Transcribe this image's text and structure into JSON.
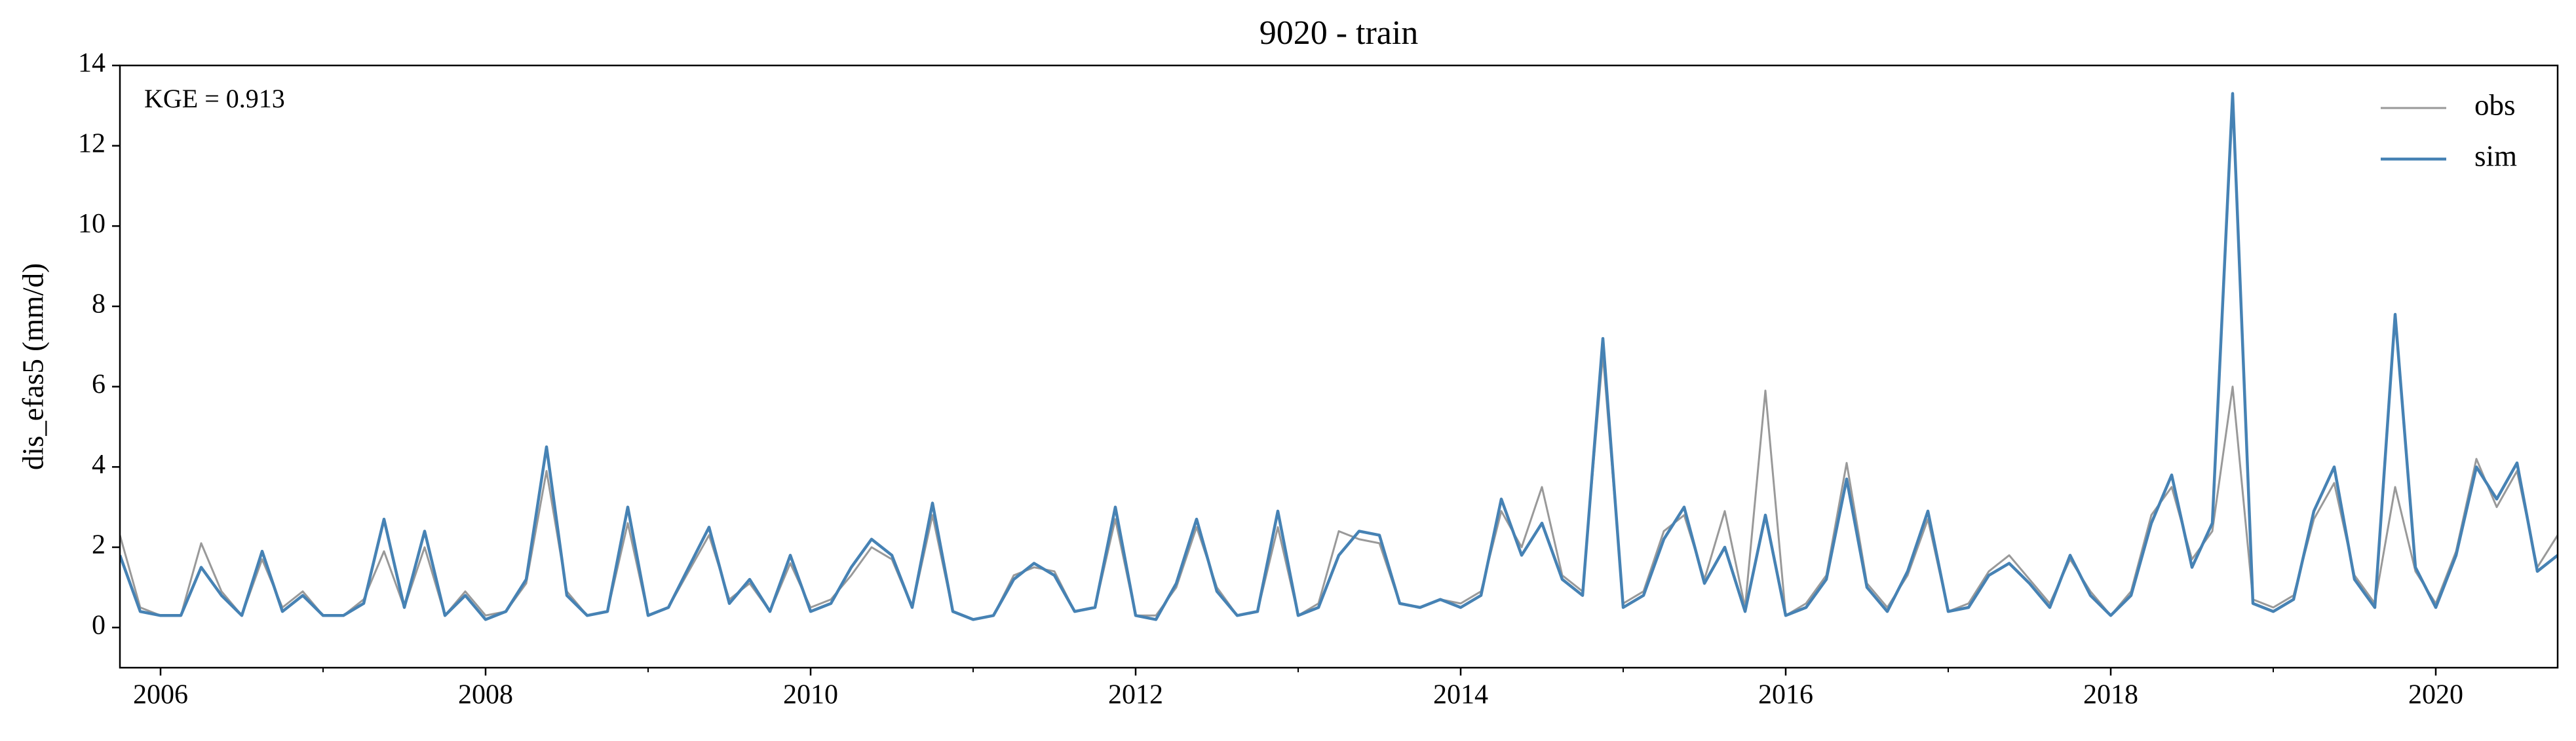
{
  "chart_data": {
    "type": "line",
    "title": "9020 - train",
    "ylabel": "dis_efas5 (mm/d)",
    "annotation": "KGE = 0.913",
    "x": [
      2005.75,
      2005.875,
      2006,
      2006.125,
      2006.25,
      2006.375,
      2006.5,
      2006.625,
      2006.75,
      2006.875,
      2007,
      2007.125,
      2007.25,
      2007.375,
      2007.5,
      2007.625,
      2007.75,
      2007.875,
      2008,
      2008.125,
      2008.25,
      2008.375,
      2008.5,
      2008.625,
      2008.75,
      2008.875,
      2009,
      2009.125,
      2009.25,
      2009.375,
      2009.5,
      2009.625,
      2009.75,
      2009.875,
      2010,
      2010.125,
      2010.25,
      2010.375,
      2010.5,
      2010.625,
      2010.75,
      2010.875,
      2011,
      2011.125,
      2011.25,
      2011.375,
      2011.5,
      2011.625,
      2011.75,
      2011.875,
      2012,
      2012.125,
      2012.25,
      2012.375,
      2012.5,
      2012.625,
      2012.75,
      2012.875,
      2013,
      2013.125,
      2013.25,
      2013.375,
      2013.5,
      2013.625,
      2013.75,
      2013.875,
      2014,
      2014.125,
      2014.25,
      2014.375,
      2014.5,
      2014.625,
      2014.75,
      2014.875,
      2015,
      2015.125,
      2015.25,
      2015.375,
      2015.5,
      2015.625,
      2015.75,
      2015.875,
      2016,
      2016.125,
      2016.25,
      2016.375,
      2016.5,
      2016.625,
      2016.75,
      2016.875,
      2017,
      2017.125,
      2017.25,
      2017.375,
      2017.5,
      2017.625,
      2017.75,
      2017.875,
      2018,
      2018.125,
      2018.25,
      2018.375,
      2018.5,
      2018.625,
      2018.75,
      2018.875,
      2019,
      2019.125,
      2019.25,
      2019.375,
      2019.5,
      2019.625,
      2019.75,
      2019.875,
      2020,
      2020.125,
      2020.25,
      2020.375,
      2020.5,
      2020.625,
      2020.75
    ],
    "series": [
      {
        "name": "obs",
        "color": "#999999",
        "values": [
          2.3,
          0.5,
          0.3,
          0.3,
          2.1,
          0.9,
          0.3,
          1.7,
          0.5,
          0.9,
          0.3,
          0.3,
          0.7,
          1.9,
          0.5,
          2.0,
          0.3,
          0.9,
          0.3,
          0.4,
          1.1,
          3.9,
          0.9,
          0.3,
          0.4,
          2.6,
          0.3,
          0.5,
          1.4,
          2.3,
          0.7,
          1.1,
          0.4,
          1.6,
          0.5,
          0.7,
          1.3,
          2.0,
          1.7,
          0.5,
          2.8,
          0.4,
          0.2,
          0.3,
          1.3,
          1.5,
          1.4,
          0.4,
          0.5,
          2.7,
          0.3,
          0.3,
          1.0,
          2.5,
          1.0,
          0.3,
          0.4,
          2.5,
          0.3,
          0.6,
          2.4,
          2.2,
          2.1,
          0.6,
          0.5,
          0.7,
          0.6,
          0.9,
          2.9,
          2.0,
          3.5,
          1.3,
          0.9,
          6.8,
          0.6,
          0.9,
          2.4,
          2.8,
          1.2,
          2.9,
          0.5,
          5.9,
          0.3,
          0.6,
          1.3,
          4.1,
          1.1,
          0.5,
          1.3,
          2.7,
          0.4,
          0.6,
          1.4,
          1.8,
          1.2,
          0.6,
          1.7,
          0.9,
          0.3,
          0.9,
          2.8,
          3.5,
          1.7,
          2.4,
          6.0,
          0.7,
          0.5,
          0.8,
          2.7,
          3.6,
          1.3,
          0.6,
          3.5,
          1.4,
          0.6,
          1.9,
          4.2,
          3.0,
          3.9,
          1.5,
          2.3
        ]
      },
      {
        "name": "sim",
        "color": "#4682b4",
        "values": [
          1.8,
          0.4,
          0.3,
          0.3,
          1.5,
          0.8,
          0.3,
          1.9,
          0.4,
          0.8,
          0.3,
          0.3,
          0.6,
          2.7,
          0.5,
          2.4,
          0.3,
          0.8,
          0.2,
          0.4,
          1.2,
          4.5,
          0.8,
          0.3,
          0.4,
          3.0,
          0.3,
          0.5,
          1.5,
          2.5,
          0.6,
          1.2,
          0.4,
          1.8,
          0.4,
          0.6,
          1.5,
          2.2,
          1.8,
          0.5,
          3.1,
          0.4,
          0.2,
          0.3,
          1.2,
          1.6,
          1.3,
          0.4,
          0.5,
          3.0,
          0.3,
          0.2,
          1.1,
          2.7,
          0.9,
          0.3,
          0.4,
          2.9,
          0.3,
          0.5,
          1.8,
          2.4,
          2.3,
          0.6,
          0.5,
          0.7,
          0.5,
          0.8,
          3.2,
          1.8,
          2.6,
          1.2,
          0.8,
          7.2,
          0.5,
          0.8,
          2.2,
          3.0,
          1.1,
          2.0,
          0.4,
          2.8,
          0.3,
          0.5,
          1.2,
          3.7,
          1.0,
          0.4,
          1.4,
          2.9,
          0.4,
          0.5,
          1.3,
          1.6,
          1.1,
          0.5,
          1.8,
          0.8,
          0.3,
          0.8,
          2.6,
          3.8,
          1.5,
          2.6,
          13.3,
          0.6,
          0.4,
          0.7,
          2.9,
          4.0,
          1.2,
          0.5,
          7.8,
          1.5,
          0.5,
          1.8,
          4.0,
          3.2,
          4.1,
          1.4,
          1.8
        ]
      }
    ],
    "xlim": [
      2005.75,
      2020.75
    ],
    "xticks": [
      2006,
      2008,
      2010,
      2012,
      2014,
      2016,
      2018,
      2020
    ],
    "xminorticks": [
      2007,
      2009,
      2011,
      2013,
      2015,
      2017,
      2019
    ],
    "ylim": [
      -1,
      14
    ],
    "yticks": [
      0,
      2,
      4,
      6,
      8,
      10,
      12,
      14
    ],
    "legend": "upper right"
  }
}
